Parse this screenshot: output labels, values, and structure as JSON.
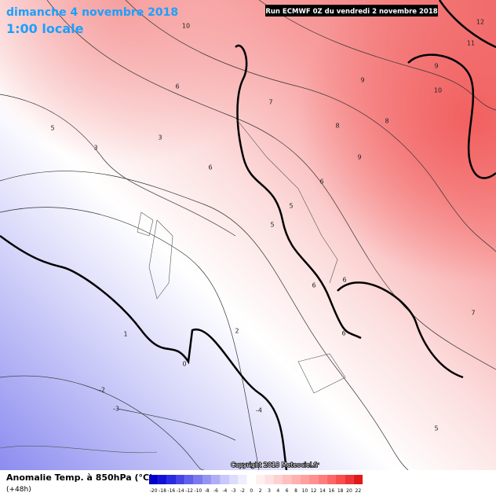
{
  "header": {
    "date": "dimanche 4 novembre 2018",
    "time": "1:00 locale",
    "run": "Run ECMWF 0Z du vendredi 2 novembre 2018"
  },
  "copyright": "Copyright 2018 Meteociel.fr",
  "legend": {
    "title": "Anomalie Temp. à 850hPa (°C)",
    "lead": "(+48h)",
    "labels": [
      "-20",
      "-18",
      "-16",
      "-14",
      "-12",
      "-10",
      "-8",
      "-6",
      "-4",
      "-3",
      "-2",
      "0",
      "2",
      "3",
      "4",
      "6",
      "8",
      "10",
      "12",
      "14",
      "16",
      "18",
      "20",
      "22"
    ],
    "colors": [
      "#0000c8",
      "#1010d8",
      "#2a2ae0",
      "#4646e6",
      "#6060ea",
      "#7a7aee",
      "#9494f2",
      "#aeaef6",
      "#c8c8fa",
      "#dcdcfc",
      "#eeeefe",
      "#ffffff",
      "#fff0f0",
      "#ffe0e0",
      "#ffd0d0",
      "#ffc0c0",
      "#ffb0b0",
      "#ffa0a0",
      "#ff9090",
      "#ff7c7c",
      "#ff6666",
      "#f84e4e",
      "#ee3434",
      "#e01818"
    ]
  },
  "contour_labels": [
    "10",
    "12",
    "11",
    "9",
    "10",
    "9",
    "8",
    "7",
    "8",
    "6",
    "5",
    "3",
    "3",
    "6",
    "9",
    "6",
    "5",
    "5",
    "6",
    "6",
    "6",
    "2",
    "0",
    "1",
    "-2",
    "-3",
    "-4",
    "5",
    "7"
  ]
}
